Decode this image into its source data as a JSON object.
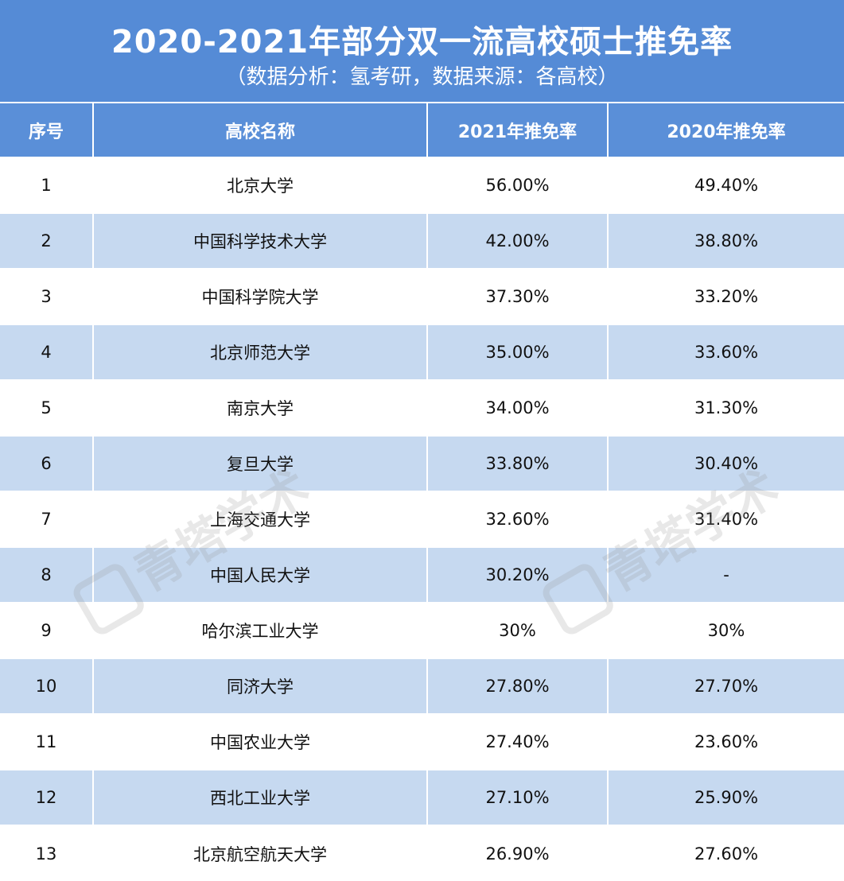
{
  "title": "2020-2021年部分双一流高校硕士推免率",
  "subtitle": "（数据分析：氢考研，数据来源：各高校）",
  "watermark": "青塔学术",
  "colors": {
    "header": "#558bd6",
    "stripe": "#c6d9f0"
  },
  "columns": [
    "序号",
    "高校名称",
    "2021年推免率",
    "2020年推免率"
  ],
  "rows": [
    [
      "1",
      "北京大学",
      "56.00%",
      "49.40%"
    ],
    [
      "2",
      "中国科学技术大学",
      "42.00%",
      "38.80%"
    ],
    [
      "3",
      "中国科学院大学",
      "37.30%",
      "33.20%"
    ],
    [
      "4",
      "北京师范大学",
      "35.00%",
      "33.60%"
    ],
    [
      "5",
      "南京大学",
      "34.00%",
      "31.30%"
    ],
    [
      "6",
      "复旦大学",
      "33.80%",
      "30.40%"
    ],
    [
      "7",
      "上海交通大学",
      "32.60%",
      "31.40%"
    ],
    [
      "8",
      "中国人民大学",
      "30.20%",
      "-"
    ],
    [
      "9",
      "哈尔滨工业大学",
      "30%",
      "30%"
    ],
    [
      "10",
      "同济大学",
      "27.80%",
      "27.70%"
    ],
    [
      "11",
      "中国农业大学",
      "27.40%",
      "23.60%"
    ],
    [
      "12",
      "西北工业大学",
      "27.10%",
      "25.90%"
    ],
    [
      "13",
      "北京航空航天大学",
      "26.90%",
      "27.60%"
    ]
  ]
}
